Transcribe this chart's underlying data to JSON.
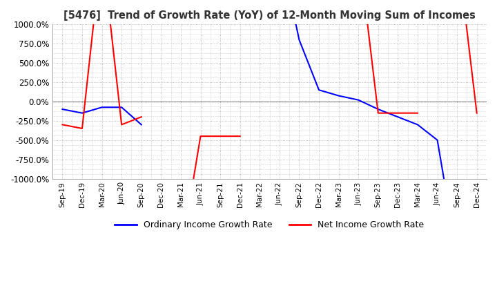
{
  "title": "[5476]  Trend of Growth Rate (YoY) of 12-Month Moving Sum of Incomes",
  "ylim": [
    -1000,
    1000
  ],
  "yticks": [
    -1000,
    -750,
    -500,
    -250,
    0,
    250,
    500,
    750,
    1000
  ],
  "ytick_labels": [
    "-1000.0%",
    "-750.0%",
    "-500.0%",
    "-250.0%",
    "0.0%",
    "250.0%",
    "500.0%",
    "750.0%",
    "1000.0%"
  ],
  "x_labels": [
    "Sep-19",
    "Dec-19",
    "Mar-20",
    "Jun-20",
    "Sep-20",
    "Dec-20",
    "Mar-21",
    "Jun-21",
    "Sep-21",
    "Dec-21",
    "Mar-22",
    "Jun-22",
    "Sep-22",
    "Dec-22",
    "Mar-23",
    "Jun-23",
    "Sep-23",
    "Dec-23",
    "Mar-24",
    "Jun-24",
    "Sep-24",
    "Dec-24"
  ],
  "ordinary_color": "#0000ff",
  "net_color": "#ff0000",
  "background_color": "#ffffff",
  "grid_color": "#aaaaaa",
  "legend_ordinary": "Ordinary Income Growth Rate",
  "legend_net": "Net Income Growth Rate"
}
